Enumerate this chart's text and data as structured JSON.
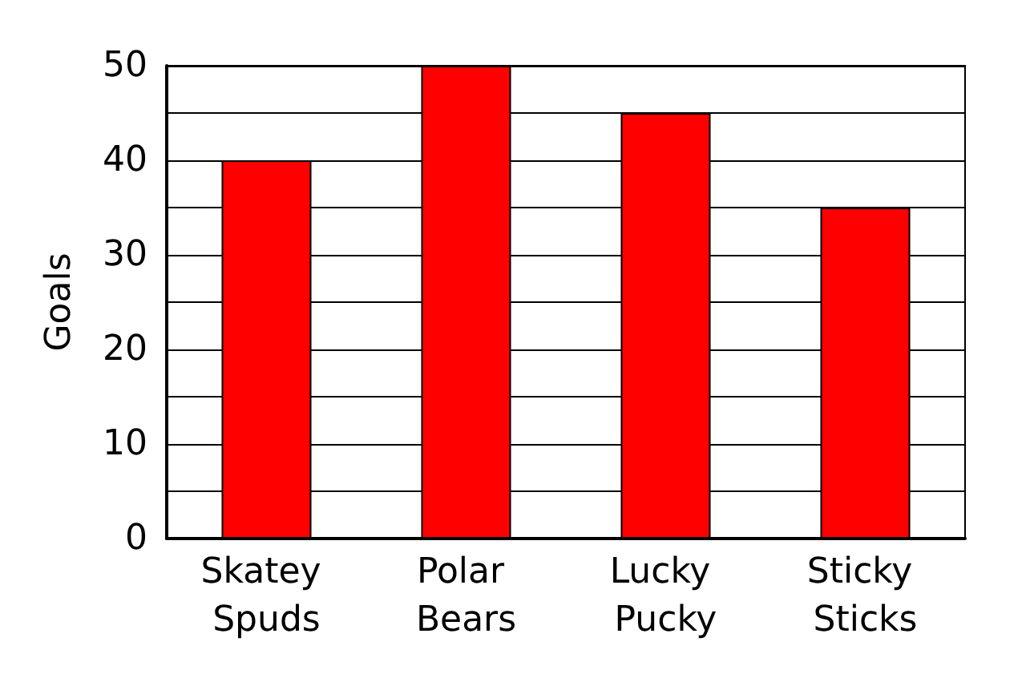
{
  "chart_data": {
    "type": "bar",
    "ylabel": "Goals",
    "categories": [
      "Skatey Spuds",
      "Polar Bears",
      "Lucky Pucky",
      "Sticky Sticks"
    ],
    "values": [
      40,
      50,
      45,
      35
    ],
    "color": "#ff0000",
    "ylim": [
      0,
      50
    ],
    "yticks": [
      0,
      {
        "value": 5,
        "label": null
      },
      10,
      {
        "value": 15,
        "label": null
      },
      20,
      {
        "value": 25,
        "label": null
      },
      30,
      {
        "value": 35,
        "label": null
      },
      40,
      {
        "value": 45,
        "label": null
      },
      50
    ],
    "grid": "y"
  }
}
